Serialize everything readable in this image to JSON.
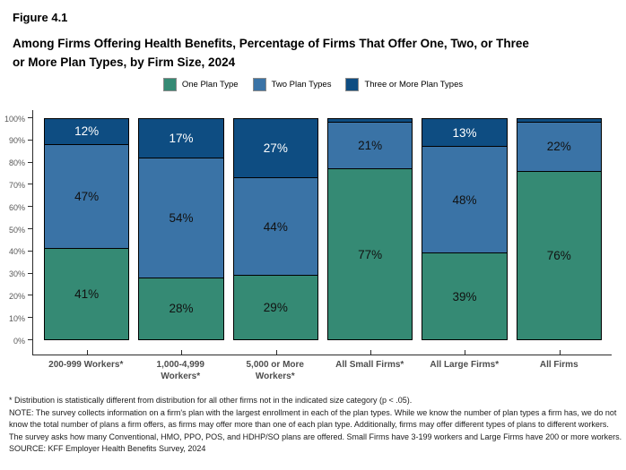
{
  "figure_label": "Figure 4.1",
  "title_line1": "Among Firms Offering Health Benefits, Percentage of Firms That Offer One, Two, or Three",
  "title_line2": "or More Plan Types, by Firm Size, 2024",
  "legend": [
    {
      "label": "One Plan Type",
      "color": "#358A74"
    },
    {
      "label": "Two Plan Types",
      "color": "#3A73A6"
    },
    {
      "label": "Three or More Plan Types",
      "color": "#0E4D82"
    }
  ],
  "chart_data": {
    "type": "bar",
    "stacked": true,
    "categories": [
      "200-999 Workers*",
      "1,000-4,999\nWorkers*",
      "5,000 or More\nWorkers*",
      "All Small Firms*",
      "All Large Firms*",
      "All Firms"
    ],
    "series": [
      {
        "name": "One Plan Type",
        "color": "#358A74",
        "text_color": "#111111",
        "values": [
          41,
          28,
          29,
          77,
          39,
          76
        ],
        "labels": [
          "41%",
          "28%",
          "29%",
          "77%",
          "39%",
          "76%"
        ]
      },
      {
        "name": "Two Plan Types",
        "color": "#3A73A6",
        "text_color": "#111111",
        "values": [
          47,
          54,
          44,
          21,
          48,
          22
        ],
        "labels": [
          "47%",
          "54%",
          "44%",
          "21%",
          "48%",
          "22%"
        ]
      },
      {
        "name": "Three or More Plan Types",
        "color": "#0E4D82",
        "text_color": "#ffffff",
        "values": [
          12,
          17,
          27,
          2,
          13,
          2
        ],
        "labels": [
          "12%",
          "17%",
          "27%",
          "",
          "13%",
          ""
        ]
      }
    ],
    "ylim": [
      0,
      100
    ],
    "yticks": [
      "0%",
      "10%",
      "20%",
      "30%",
      "40%",
      "50%",
      "60%",
      "70%",
      "80%",
      "90%",
      "100%"
    ],
    "grid": false,
    "legend_position": "top"
  },
  "footnotes": [
    "* Distribution is statistically different from distribution for all other firms not in the indicated size category (p < .05).",
    "NOTE: The survey collects information on a firm's plan with the largest enrollment in each of the plan types. While we know the number of plan types a firm has, we do not know the total number of plans a firm offers, as firms may offer more than one of each plan type. Additionally, firms may offer different types of plans to different workers. The survey asks how many Conventional, HMO, PPO, POS, and HDHP/SO plans are offered. Small Firms have 3-199 workers and Large Firms have 200 or more workers.",
    "SOURCE: KFF Employer Health Benefits Survey, 2024"
  ]
}
